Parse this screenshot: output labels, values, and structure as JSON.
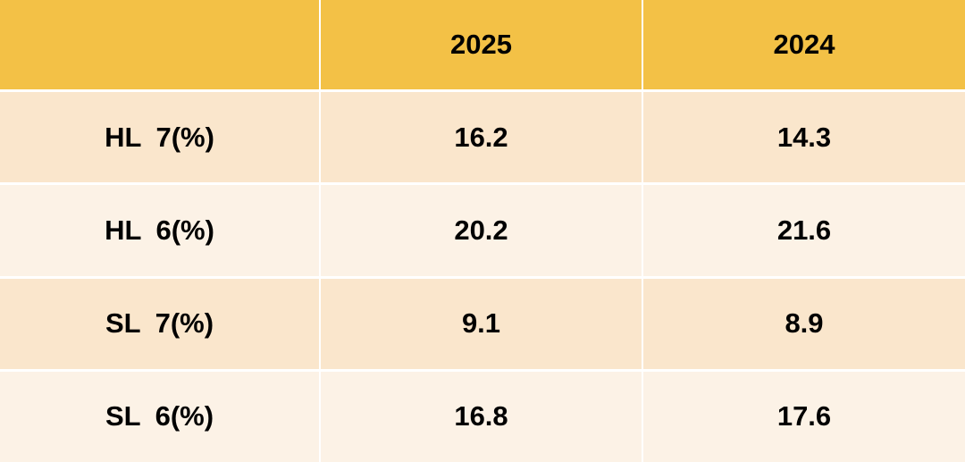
{
  "table": {
    "header": [
      "2025",
      "2024"
    ],
    "rows": [
      [
        "HL 7(%)",
        "16.2",
        "14.3"
      ],
      [
        "HL 6(%)",
        "20.2",
        "21.6"
      ],
      [
        "SL 7(%)",
        "9.1",
        "8.9"
      ],
      [
        "SL 6(%)",
        "16.8",
        "17.6"
      ]
    ]
  }
}
